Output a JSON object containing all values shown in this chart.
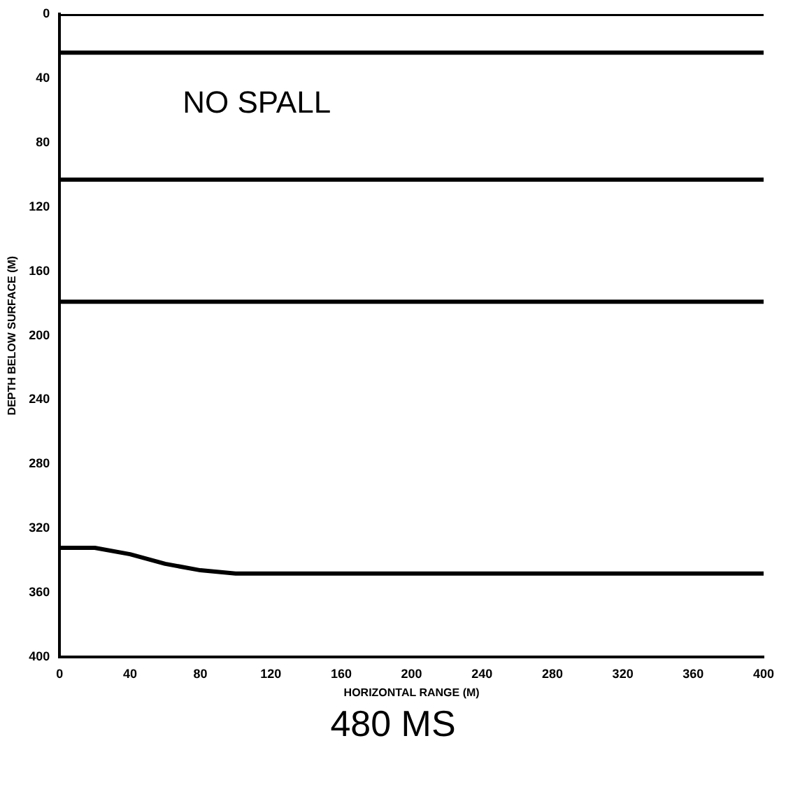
{
  "chart_data": {
    "type": "line",
    "title": "480 MS",
    "xlabel": "HORIZONTAL RANGE (M)",
    "ylabel": "DEPTH BELOW SURFACE (M)",
    "annotations": [
      "NO SPALL"
    ],
    "xlim": [
      0,
      400
    ],
    "xticks": [
      0,
      40,
      80,
      120,
      160,
      200,
      240,
      280,
      320,
      360,
      400
    ],
    "ylim": [
      400,
      0
    ],
    "yticks": [
      0,
      40,
      80,
      120,
      160,
      200,
      240,
      280,
      320,
      360,
      400
    ],
    "grid": false,
    "legend": false,
    "marker": "none",
    "line_style": "solid",
    "series": [
      {
        "color": "#000000",
        "x": [
          0,
          400
        ],
        "values": [
          0,
          0
        ]
      },
      {
        "color": "#000000",
        "x": [
          0,
          400
        ],
        "values": [
          24,
          24
        ]
      },
      {
        "color": "#000000",
        "x": [
          0,
          400
        ],
        "values": [
          103,
          103
        ]
      },
      {
        "color": "#000000",
        "x": [
          0,
          400
        ],
        "values": [
          179,
          179
        ]
      },
      {
        "color": "#000000",
        "x": [
          0,
          20,
          40,
          60,
          80,
          100,
          120,
          200,
          280,
          400
        ],
        "values": [
          332,
          332,
          336,
          342,
          346,
          348,
          348,
          348,
          348,
          348
        ]
      }
    ]
  }
}
